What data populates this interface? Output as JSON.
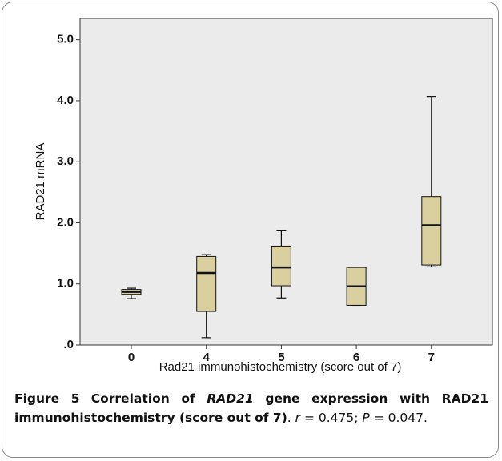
{
  "chart_data": {
    "type": "box",
    "x_label": "Rad21 immunohistochemistry (score out of 7)",
    "y_label": "RAD21 mRNA",
    "categories": [
      "0",
      "4",
      "5",
      "6",
      "7"
    ],
    "boxes": [
      {
        "min": 0.76,
        "q1": 0.83,
        "median": 0.87,
        "q3": 0.91,
        "max": 0.93
      },
      {
        "min": 0.12,
        "q1": 0.55,
        "median": 1.18,
        "q3": 1.45,
        "max": 1.48
      },
      {
        "min": 0.77,
        "q1": 0.97,
        "median": 1.27,
        "q3": 1.62,
        "max": 1.87
      },
      {
        "min": 0.65,
        "q1": 0.65,
        "median": 0.96,
        "q3": 1.27,
        "max": 1.27
      },
      {
        "min": 1.28,
        "q1": 1.31,
        "median": 1.96,
        "q3": 2.43,
        "max": 4.07
      }
    ],
    "color": "#d9cf9f",
    "ylim": [
      0,
      5.35
    ],
    "yticks": [
      {
        "value": 0,
        "label": ".0"
      },
      {
        "value": 1,
        "label": "1.0"
      },
      {
        "value": 2,
        "label": "2.0"
      },
      {
        "value": 3,
        "label": "3.0"
      },
      {
        "value": 4,
        "label": "4.0"
      },
      {
        "value": 5,
        "label": "5.0"
      }
    ]
  },
  "caption": {
    "label": "Figure 5",
    "parts": [
      "Correlation of ",
      "RAD21",
      " gene expression with RAD21 immunohistochemistry (score out of 7)",
      ". ",
      "r",
      " = 0.475; ",
      "P",
      " = 0.047."
    ]
  }
}
